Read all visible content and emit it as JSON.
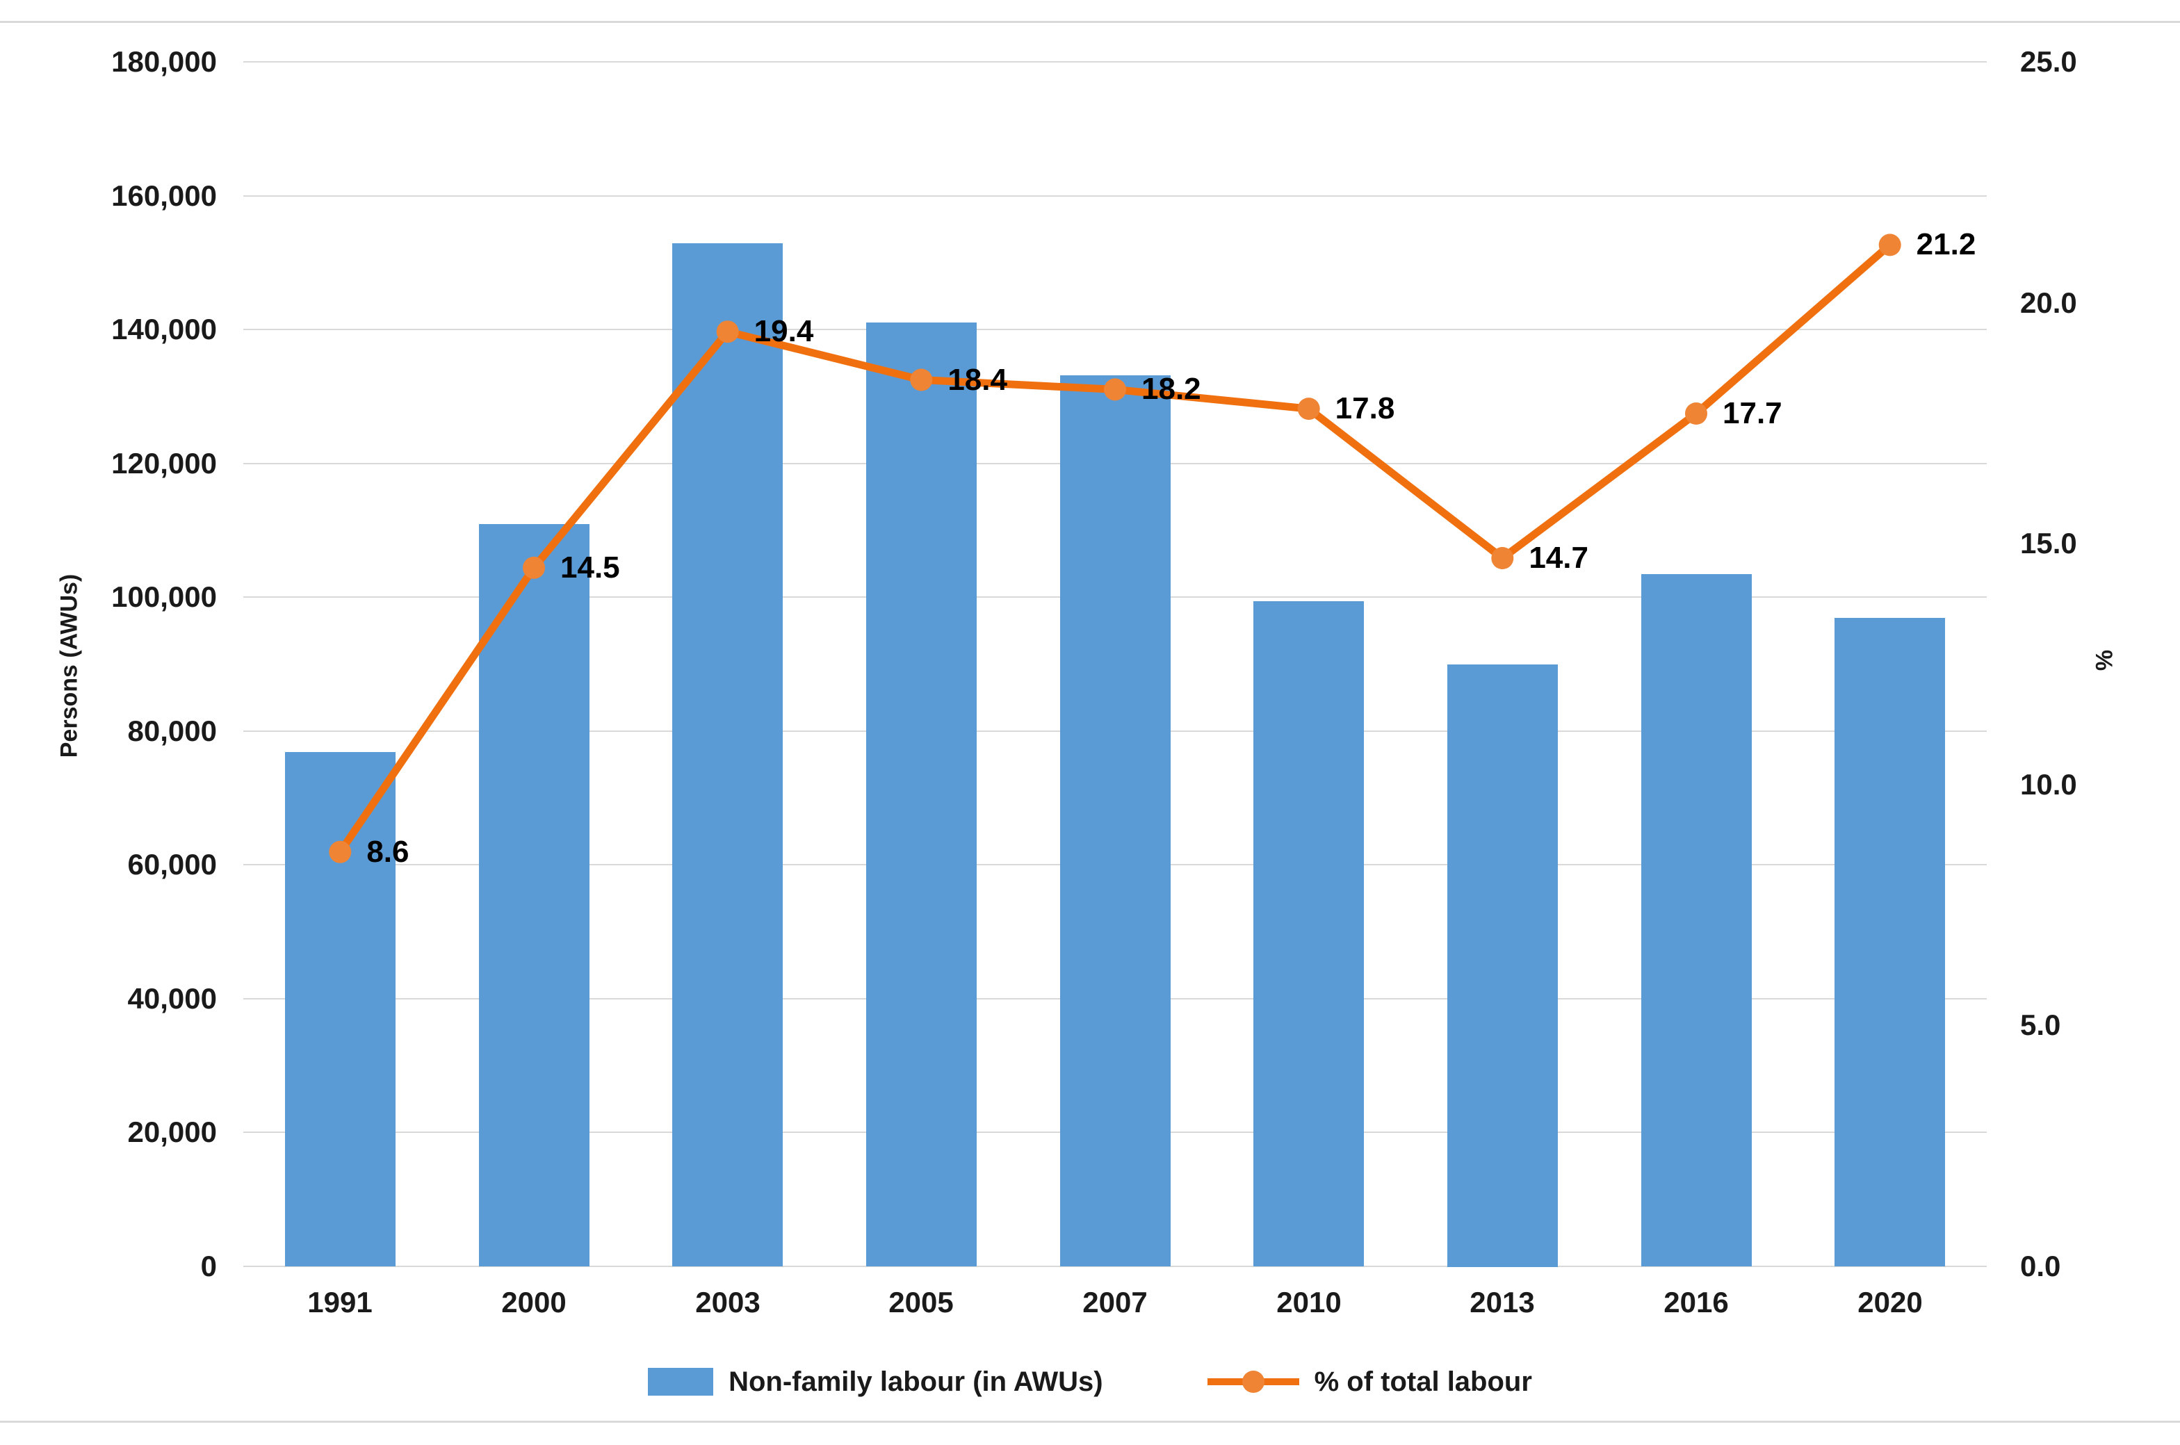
{
  "chart_data": {
    "type": "combo-bar-line",
    "title": "",
    "categories": [
      "1991",
      "2000",
      "2003",
      "2005",
      "2007",
      "2010",
      "2013",
      "2016",
      "2020"
    ],
    "series": [
      {
        "name": "Non-family labour (in AWUs)",
        "type": "bar",
        "axis": "left",
        "color": "#5b9bd5",
        "values": [
          76900,
          110900,
          152900,
          141100,
          133200,
          99400,
          90000,
          103500,
          96900
        ]
      },
      {
        "name": "% of total labour",
        "type": "line",
        "axis": "right",
        "color": "#f0700f",
        "marker_color": "#ef8435",
        "values": [
          8.6,
          14.5,
          19.4,
          18.4,
          18.2,
          17.8,
          14.7,
          17.7,
          21.2
        ],
        "data_labels": [
          "8.6",
          "14.5",
          "19.4",
          "18.4",
          "18.2",
          "17.8",
          "14.7",
          "17.7",
          "21.2"
        ]
      }
    ],
    "left_axis": {
      "title": "Persons (AWUs)",
      "min": 0,
      "max": 180000,
      "tick_labels": [
        "0",
        "20,000",
        "40,000",
        "60,000",
        "80,000",
        "100,000",
        "120,000",
        "140,000",
        "160,000",
        "180,000"
      ]
    },
    "right_axis": {
      "title": "%",
      "min": 0,
      "max": 25,
      "tick_labels": [
        "0.0",
        "5.0",
        "10.0",
        "15.0",
        "20.0",
        "25.0"
      ]
    },
    "grid": true,
    "legend_position": "bottom"
  }
}
